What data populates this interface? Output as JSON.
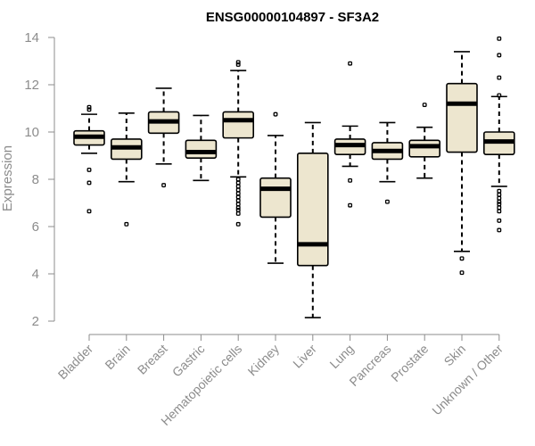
{
  "chart_data": {
    "type": "boxplot",
    "title": "ENSG00000104897 - SF3A2",
    "ylabel": "Expression",
    "ylim": [
      2,
      14
    ],
    "yticks": [
      2,
      4,
      6,
      8,
      10,
      12,
      14
    ],
    "box_color": "#ede6cf",
    "categories": [
      "Bladder",
      "Brain",
      "Breast",
      "Gastric",
      "Hematopoietic cells",
      "Kidney",
      "Liver",
      "Lung",
      "Pancreas",
      "Prostate",
      "Skin",
      "Unknown / Other"
    ],
    "boxes": [
      {
        "whisker_low": 9.1,
        "q1": 9.45,
        "median": 9.8,
        "q3": 10.05,
        "whisker_high": 10.75,
        "outliers": [
          11.05,
          10.95,
          8.4,
          7.85,
          6.65
        ]
      },
      {
        "whisker_low": 7.9,
        "q1": 8.85,
        "median": 9.35,
        "q3": 9.7,
        "whisker_high": 10.8,
        "outliers": [
          6.1
        ]
      },
      {
        "whisker_low": 8.65,
        "q1": 9.95,
        "median": 10.45,
        "q3": 10.85,
        "whisker_high": 11.85,
        "outliers": [
          7.75
        ]
      },
      {
        "whisker_low": 7.95,
        "q1": 8.9,
        "median": 9.15,
        "q3": 9.65,
        "whisker_high": 10.7,
        "outliers": []
      },
      {
        "whisker_low": 8.1,
        "q1": 9.75,
        "median": 10.5,
        "q3": 10.85,
        "whisker_high": 12.6,
        "outliers": [
          12.95,
          12.85,
          8.0,
          7.85,
          7.7,
          7.55,
          7.4,
          7.25,
          7.1,
          6.95,
          6.8,
          6.7,
          6.55,
          6.1
        ]
      },
      {
        "whisker_low": 4.45,
        "q1": 6.4,
        "median": 7.6,
        "q3": 8.05,
        "whisker_high": 9.85,
        "outliers": [
          10.75
        ]
      },
      {
        "whisker_low": 2.15,
        "q1": 4.35,
        "median": 5.25,
        "q3": 9.1,
        "whisker_high": 10.4,
        "outliers": []
      },
      {
        "whisker_low": 8.55,
        "q1": 9.05,
        "median": 9.45,
        "q3": 9.7,
        "whisker_high": 10.25,
        "outliers": [
          12.9,
          7.95,
          6.9
        ]
      },
      {
        "whisker_low": 7.9,
        "q1": 8.85,
        "median": 9.2,
        "q3": 9.55,
        "whisker_high": 10.4,
        "outliers": [
          7.05
        ]
      },
      {
        "whisker_low": 8.05,
        "q1": 8.95,
        "median": 9.4,
        "q3": 9.65,
        "whisker_high": 10.2,
        "outliers": [
          11.15
        ]
      },
      {
        "whisker_low": 4.95,
        "q1": 9.15,
        "median": 11.2,
        "q3": 12.05,
        "whisker_high": 13.4,
        "outliers": [
          4.65,
          4.05
        ]
      },
      {
        "whisker_low": 7.7,
        "q1": 9.05,
        "median": 9.6,
        "q3": 10.0,
        "whisker_high": 11.5,
        "outliers": [
          13.95,
          13.25,
          12.3,
          11.55,
          7.5,
          7.35,
          7.2,
          7.05,
          6.95,
          6.8,
          6.65,
          6.25,
          5.85
        ]
      }
    ]
  }
}
